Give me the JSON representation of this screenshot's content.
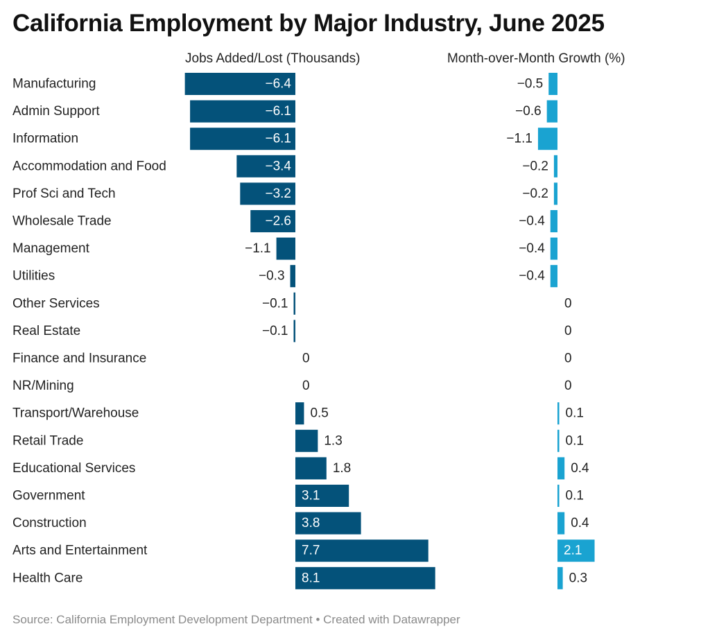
{
  "title": "California Employment by Major Industry, June 2025",
  "source": "Source: California Employment Development Department • Created with Datawrapper",
  "colors": {
    "jobs_bar": "#04527a",
    "growth_bar": "#1aa3d1",
    "label_on_bar": "#ffffff",
    "label_off_bar": "#222222"
  },
  "chart_data": [
    {
      "type": "bar",
      "orientation": "horizontal",
      "column_header": "Jobs Added/Lost (Thousands)",
      "categories": [
        "Manufacturing",
        "Admin Support",
        "Information",
        "Accommodation and Food",
        "Prof Sci and Tech",
        "Wholesale Trade",
        "Management",
        "Utilities",
        "Other Services",
        "Real Estate",
        "Finance and Insurance",
        "NR/Mining",
        "Transport/Warehouse",
        "Retail Trade",
        "Educational Services",
        "Government",
        "Construction",
        "Arts and Entertainment",
        "Health Care"
      ],
      "values": [
        -6.4,
        -6.1,
        -6.1,
        -3.4,
        -3.2,
        -2.6,
        -1.1,
        -0.3,
        -0.1,
        -0.1,
        0,
        0,
        0.5,
        1.3,
        1.8,
        3.1,
        3.8,
        7.7,
        8.1
      ],
      "labels": [
        "−6.4",
        "−6.1",
        "−6.1",
        "−3.4",
        "−3.2",
        "−2.6",
        "−1.1",
        "−0.3",
        "−0.1",
        "−0.1",
        "0",
        "0",
        "0.5",
        "1.3",
        "1.8",
        "3.1",
        "3.8",
        "7.7",
        "8.1"
      ]
    },
    {
      "type": "bar",
      "orientation": "horizontal",
      "column_header": "Month-over-Month Growth (%)",
      "categories": [
        "Manufacturing",
        "Admin Support",
        "Information",
        "Accommodation and Food",
        "Prof Sci and Tech",
        "Wholesale Trade",
        "Management",
        "Utilities",
        "Other Services",
        "Real Estate",
        "Finance and Insurance",
        "NR/Mining",
        "Transport/Warehouse",
        "Retail Trade",
        "Educational Services",
        "Government",
        "Construction",
        "Arts and Entertainment",
        "Health Care"
      ],
      "values": [
        -0.5,
        -0.6,
        -1.1,
        -0.2,
        -0.2,
        -0.4,
        -0.4,
        -0.4,
        0,
        0,
        0,
        0,
        0.1,
        0.1,
        0.4,
        0.1,
        0.4,
        2.1,
        0.3
      ],
      "labels": [
        "−0.5",
        "−0.6",
        "−1.1",
        "−0.2",
        "−0.2",
        "−0.4",
        "−0.4",
        "−0.4",
        "0",
        "0",
        "0",
        "0",
        "0.1",
        "0.1",
        "0.4",
        "0.1",
        "0.4",
        "2.1",
        "0.3"
      ]
    }
  ]
}
